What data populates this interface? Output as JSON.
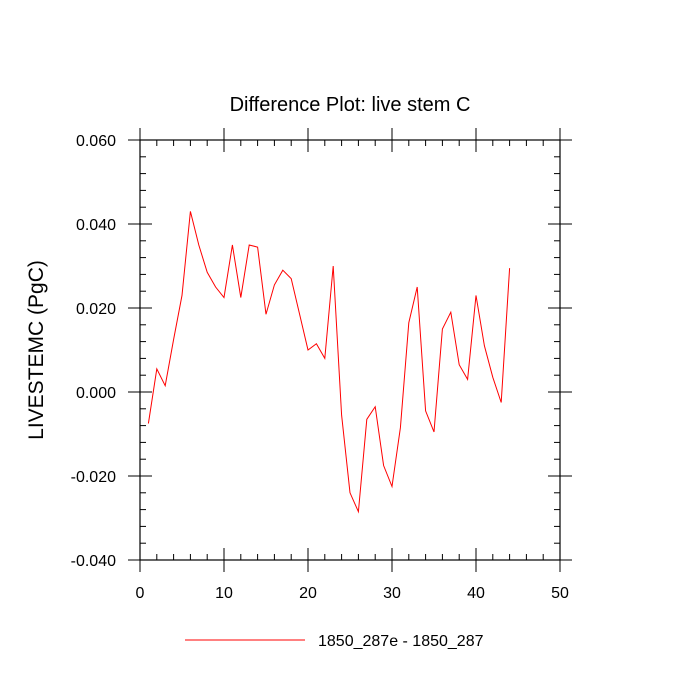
{
  "chart_data": {
    "type": "line",
    "title": "Difference Plot: live stem C",
    "xlabel": "",
    "ylabel": "LIVESTEMC  (PgC)",
    "xlim": [
      0,
      50
    ],
    "ylim": [
      -0.04,
      0.06
    ],
    "xticks": [
      0,
      10,
      20,
      30,
      40,
      50
    ],
    "yticks": [
      -0.04,
      -0.02,
      0.0,
      0.02,
      0.04,
      0.06
    ],
    "ytick_labels": [
      "-0.040",
      "-0.020",
      "0.000",
      "0.020",
      "0.040",
      "0.060"
    ],
    "xtick_labels": [
      "0",
      "10",
      "20",
      "30",
      "40",
      "50"
    ],
    "grid": false,
    "legend_position": "bottom",
    "series": [
      {
        "name": "1850_287e - 1850_287",
        "color": "#ff0000",
        "x": [
          1,
          2,
          3,
          4,
          5,
          6,
          7,
          8,
          9,
          10,
          11,
          12,
          13,
          14,
          15,
          16,
          17,
          18,
          19,
          20,
          21,
          22,
          23,
          24,
          25,
          26,
          27,
          28,
          29,
          30,
          31,
          32,
          33,
          34,
          35,
          36,
          37,
          38,
          39,
          40,
          41,
          42,
          43,
          44
        ],
        "y": [
          -0.0075,
          0.0055,
          0.0015,
          0.0125,
          0.023,
          0.043,
          0.035,
          0.0285,
          0.025,
          0.0225,
          0.035,
          0.0225,
          0.035,
          0.0345,
          0.0185,
          0.0255,
          0.029,
          0.027,
          0.0185,
          0.01,
          0.0115,
          0.008,
          0.03,
          -0.0055,
          -0.024,
          -0.0285,
          -0.0065,
          -0.0035,
          -0.0175,
          -0.0225,
          -0.0085,
          0.0165,
          0.025,
          -0.0045,
          -0.0095,
          0.015,
          0.019,
          0.0065,
          0.003,
          0.023,
          0.011,
          0.0035,
          -0.0025,
          0.0295
        ]
      }
    ]
  }
}
